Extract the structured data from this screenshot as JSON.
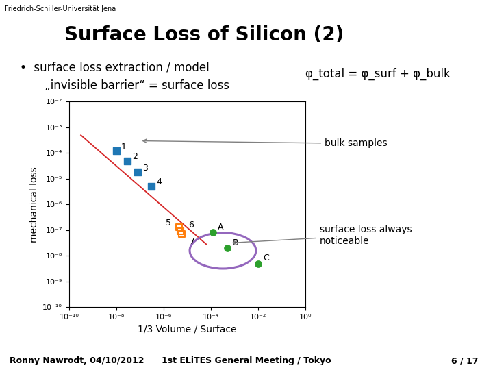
{
  "chart_data": {
    "type": "scatter",
    "title": "Surface Loss of Silicon (2)",
    "header_text": "Friedrich-Schiller-Universität Jena",
    "bullet_text": "•  surface loss extraction / model",
    "indent_text": "„invisible barrier“ = surface loss",
    "formula": "φ_total = φ_surf + φ_bulk",
    "xlabel": "1/3 Volume / Surface",
    "ylabel": "mechanical loss",
    "log": true,
    "grid": false,
    "xlim": [
      1e-10,
      1
    ],
    "ylim": [
      1e-10,
      0.01
    ],
    "xticks": [
      {
        "value": 1e-10,
        "label": "10⁻¹⁰"
      },
      {
        "value": 1e-08,
        "label": "10⁻⁸"
      },
      {
        "value": 1e-06,
        "label": "10⁻⁶"
      },
      {
        "value": 0.0001,
        "label": "10⁻⁴"
      },
      {
        "value": 0.01,
        "label": "10⁻²"
      },
      {
        "value": 1,
        "label": "10⁰"
      }
    ],
    "yticks": [
      {
        "value": 1e-10,
        "label": "10⁻¹⁰"
      },
      {
        "value": 1e-09,
        "label": "10⁻⁹"
      },
      {
        "value": 1e-08,
        "label": "10⁻⁸"
      },
      {
        "value": 1e-07,
        "label": "10⁻⁷"
      },
      {
        "value": 1e-06,
        "label": "10⁻⁶"
      },
      {
        "value": 1e-05,
        "label": "10⁻⁵"
      },
      {
        "value": 0.0001,
        "label": "10⁻⁴"
      },
      {
        "value": 0.001,
        "label": "10⁻³"
      },
      {
        "value": 0.01,
        "label": "10⁻²"
      }
    ],
    "series": [
      {
        "type": "scatter",
        "marker": "square",
        "x": [
          1e-08,
          3e-08,
          8e-08,
          3e-07
        ],
        "values": [
          0.00012,
          5e-05,
          1.8e-05,
          5e-06
        ],
        "labels": [
          "1",
          "2",
          "3",
          "4"
        ]
      },
      {
        "type": "scatter",
        "marker": "open_square",
        "x": [
          4.5e-06,
          5.2e-06,
          5.8e-06
        ],
        "values": [
          1.3e-07,
          9e-08,
          7e-08
        ],
        "labels": [
          "5",
          "6",
          "7"
        ]
      },
      {
        "type": "scatter",
        "marker": "circle",
        "x": [
          0.00012,
          0.0005,
          0.01
        ],
        "values": [
          8e-08,
          2e-08,
          5e-09
        ],
        "labels": [
          "A",
          "B",
          "C"
        ]
      },
      {
        "type": "line",
        "x": [
          3.1622776601683795e-10,
          6.309573444801933e-05
        ],
        "values": [
          0.0005011872336272722,
          2.8183829312644537e-08
        ]
      }
    ],
    "ellipse": {
      "center_x": 0.00031622776601683794,
      "center_y": 1.5848931924611136e-08,
      "width_decades": 2.8,
      "height_decades": 1.4
    },
    "annotations": [
      {
        "text": "bulk samples",
        "x": 1e-07,
        "y": 0.0003
      },
      {
        "text": "surface loss always\nnoticeable",
        "x": 0.0006309573444801933,
        "y": 3.162277660168379e-08
      }
    ],
    "footer_left": "Ronny Nawrodt, 04/10/2012",
    "footer_center": "1st ELiTES General Meeting / Tokyo",
    "footer_right": "6 / 17"
  }
}
